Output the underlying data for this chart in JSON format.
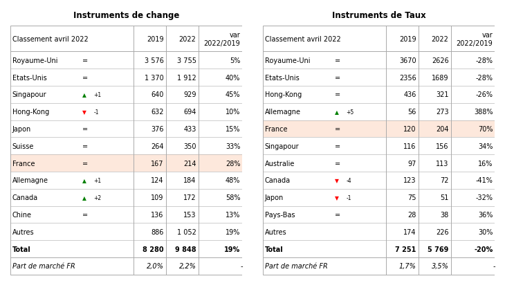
{
  "title1": "Instruments de change",
  "title2": "Instruments de Taux",
  "table1": {
    "rows": [
      {
        "country": "Royaume-Uni",
        "symbol": "=",
        "symbol_color": "black",
        "rank_change": null,
        "v2019": "3 576",
        "v2022": "3 755",
        "var": "5%",
        "highlight": false
      },
      {
        "country": "Etats-Unis",
        "symbol": "=",
        "symbol_color": "black",
        "rank_change": null,
        "v2019": "1 370",
        "v2022": "1 912",
        "var": "40%",
        "highlight": false
      },
      {
        "country": "Singapour",
        "symbol": "▲",
        "symbol_color": "green",
        "rank_change": "+1",
        "v2019": "640",
        "v2022": "929",
        "var": "45%",
        "highlight": false
      },
      {
        "country": "Hong-Kong",
        "symbol": "▼",
        "symbol_color": "red",
        "rank_change": "-1",
        "v2019": "632",
        "v2022": "694",
        "var": "10%",
        "highlight": false
      },
      {
        "country": "Japon",
        "symbol": "=",
        "symbol_color": "black",
        "rank_change": null,
        "v2019": "376",
        "v2022": "433",
        "var": "15%",
        "highlight": false
      },
      {
        "country": "Suisse",
        "symbol": "=",
        "symbol_color": "black",
        "rank_change": null,
        "v2019": "264",
        "v2022": "350",
        "var": "33%",
        "highlight": false
      },
      {
        "country": "France",
        "symbol": "=",
        "symbol_color": "black",
        "rank_change": null,
        "v2019": "167",
        "v2022": "214",
        "var": "28%",
        "highlight": true
      },
      {
        "country": "Allemagne",
        "symbol": "▲",
        "symbol_color": "green",
        "rank_change": "+1",
        "v2019": "124",
        "v2022": "184",
        "var": "48%",
        "highlight": false
      },
      {
        "country": "Canada",
        "symbol": "▲",
        "symbol_color": "green",
        "rank_change": "+2",
        "v2019": "109",
        "v2022": "172",
        "var": "58%",
        "highlight": false
      },
      {
        "country": "Chine",
        "symbol": "=",
        "symbol_color": "black",
        "rank_change": null,
        "v2019": "136",
        "v2022": "153",
        "var": "13%",
        "highlight": false
      },
      {
        "country": "Autres",
        "symbol": "",
        "symbol_color": "black",
        "rank_change": null,
        "v2019": "886",
        "v2022": "1 052",
        "var": "19%",
        "highlight": false
      }
    ],
    "total_row": {
      "label": "Total",
      "v2019": "8 280",
      "v2022": "9 848",
      "var": "19%"
    },
    "part_row": {
      "label": "Part de marché FR",
      "v2019": "2,0%",
      "v2022": "2,2%",
      "var": "-"
    }
  },
  "table2": {
    "rows": [
      {
        "country": "Royaume-Uni",
        "symbol": "=",
        "symbol_color": "black",
        "rank_change": null,
        "v2019": "3670",
        "v2022": "2626",
        "var": "-28%",
        "highlight": false
      },
      {
        "country": "Etats-Unis",
        "symbol": "=",
        "symbol_color": "black",
        "rank_change": null,
        "v2019": "2356",
        "v2022": "1689",
        "var": "-28%",
        "highlight": false
      },
      {
        "country": "Hong-Kong",
        "symbol": "=",
        "symbol_color": "black",
        "rank_change": null,
        "v2019": "436",
        "v2022": "321",
        "var": "-26%",
        "highlight": false
      },
      {
        "country": "Allemagne",
        "symbol": "▲",
        "symbol_color": "green",
        "rank_change": "+5",
        "v2019": "56",
        "v2022": "273",
        "var": "388%",
        "highlight": false
      },
      {
        "country": "France",
        "symbol": "=",
        "symbol_color": "black",
        "rank_change": null,
        "v2019": "120",
        "v2022": "204",
        "var": "70%",
        "highlight": true
      },
      {
        "country": "Singapour",
        "symbol": "=",
        "symbol_color": "black",
        "rank_change": null,
        "v2019": "116",
        "v2022": "156",
        "var": "34%",
        "highlight": false
      },
      {
        "country": "Australie",
        "symbol": "=",
        "symbol_color": "black",
        "rank_change": null,
        "v2019": "97",
        "v2022": "113",
        "var": "16%",
        "highlight": false
      },
      {
        "country": "Canada",
        "symbol": "▼",
        "symbol_color": "red",
        "rank_change": "-4",
        "v2019": "123",
        "v2022": "72",
        "var": "-41%",
        "highlight": false
      },
      {
        "country": "Japon",
        "symbol": "▼",
        "symbol_color": "red",
        "rank_change": "-1",
        "v2019": "75",
        "v2022": "51",
        "var": "-32%",
        "highlight": false
      },
      {
        "country": "Pays-Bas",
        "symbol": "=",
        "symbol_color": "black",
        "rank_change": null,
        "v2019": "28",
        "v2022": "38",
        "var": "36%",
        "highlight": false
      },
      {
        "country": "Autres",
        "symbol": "",
        "symbol_color": "black",
        "rank_change": null,
        "v2019": "174",
        "v2022": "226",
        "var": "30%",
        "highlight": false
      }
    ],
    "total_row": {
      "label": "Total",
      "v2019": "7 251",
      "v2022": "5 769",
      "var": "-20%"
    },
    "part_row": {
      "label": "Part de marché FR",
      "v2019": "1,7%",
      "v2022": "3,5%",
      "var": "-"
    }
  },
  "highlight_color": "#fde8dc",
  "border_color": "#aaaaaa",
  "bg_color": "#ffffff",
  "title_fontsize": 8.5,
  "cell_fontsize": 7.0,
  "header_fontsize": 7.0
}
